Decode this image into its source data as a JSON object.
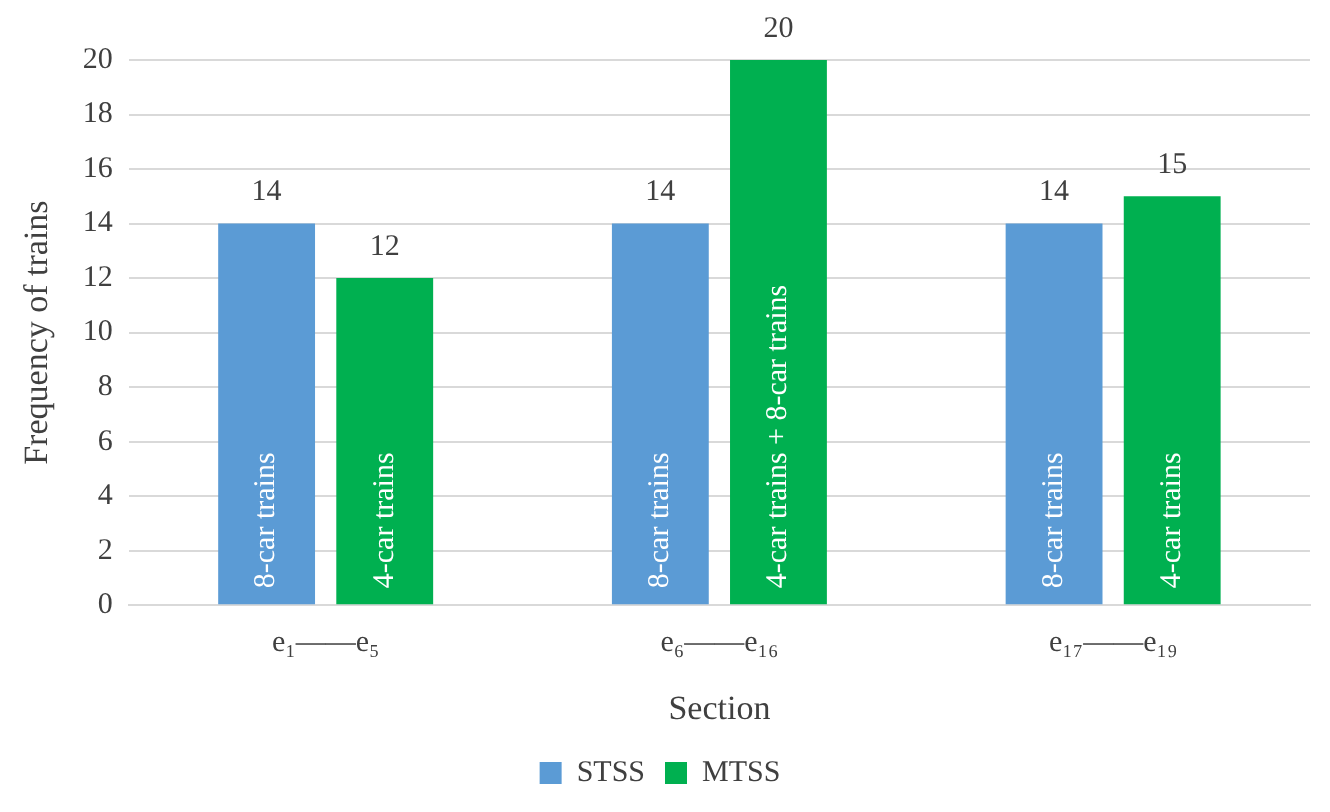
{
  "chart_data": {
    "type": "bar",
    "xlabel": "Section",
    "ylabel": "Frequency of trains",
    "categories": [
      "e₁——e₅",
      "e₆——e₁₆",
      "e₁₇——e₁₉"
    ],
    "series": [
      {
        "name": "STSS",
        "color": "#5b9bd5",
        "values": [
          14,
          14,
          14
        ]
      },
      {
        "name": "MTSS",
        "color": "#00b050",
        "values": [
          12,
          20,
          15
        ]
      }
    ],
    "ylim": [
      0,
      20
    ],
    "yticks": [
      0,
      2,
      4,
      6,
      8,
      10,
      12,
      14,
      16,
      18,
      20
    ],
    "grid": "y",
    "legend": "bottom",
    "data_labels": true,
    "annotations": [
      "8-car trains",
      "4-car trains",
      "8-car trains",
      "4-car trains + 8-car trains",
      "8-car trains",
      "4-car trains"
    ]
  }
}
